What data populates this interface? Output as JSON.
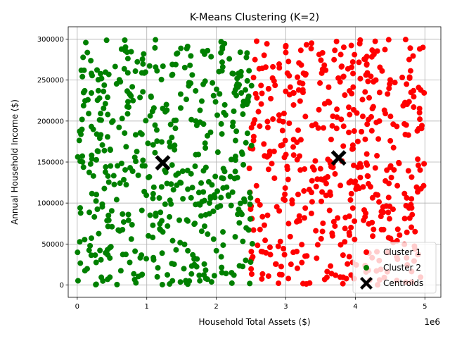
{
  "chart_data": {
    "type": "scatter",
    "title": "K-Means Clustering (K=2)",
    "xlabel": "Household Total Assets ($)",
    "ylabel": "Annual Household Income ($)",
    "x_offset_label": "1e6",
    "xlim": [
      -130000,
      5230000
    ],
    "ylim": [
      -15000,
      315000
    ],
    "x_ticks": [
      0,
      1000000,
      2000000,
      3000000,
      4000000,
      5000000
    ],
    "x_tick_labels": [
      "0",
      "1",
      "2",
      "3",
      "4",
      "5"
    ],
    "y_ticks": [
      0,
      50000,
      100000,
      150000,
      200000,
      250000,
      300000
    ],
    "y_tick_labels": [
      "0",
      "50000",
      "100000",
      "150000",
      "200000",
      "250000",
      "300000"
    ],
    "grid": true,
    "legend_position": "lower right",
    "series": [
      {
        "name": "Cluster 1",
        "color": "#ff0000",
        "x_range": [
          2470000,
          5000000
        ],
        "y_range": [
          0,
          300000
        ],
        "approx_count": 500
      },
      {
        "name": "Cluster 2",
        "color": "#008000",
        "x_range": [
          0,
          2520000
        ],
        "y_range": [
          0,
          300000
        ],
        "approx_count": 500
      },
      {
        "name": "Centroids",
        "color": "#000000",
        "marker": "X",
        "x": [
          1230000,
          3760000
        ],
        "y": [
          149000,
          155000
        ]
      }
    ]
  }
}
